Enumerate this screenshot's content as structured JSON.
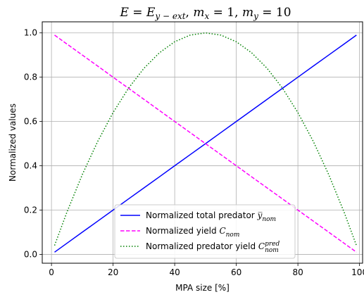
{
  "chart_data": {
    "type": "line",
    "title": {
      "E": "E",
      "equals": " = ",
      "E_sub": "y − ext",
      "sep1": ",   ",
      "mx": "m",
      "mx_sub": "x",
      "mx_val": " = 1,   ",
      "my": "m",
      "my_sub": "y",
      "my_val": " = 10"
    },
    "xlabel": "MPA size [%]",
    "ylabel": "Normalized values",
    "xlim": [
      -3,
      101
    ],
    "ylim": [
      -0.04,
      1.05
    ],
    "xticks": [
      0,
      20,
      40,
      60,
      80,
      100
    ],
    "yticks": [
      0.0,
      0.2,
      0.4,
      0.6,
      0.8,
      1.0
    ],
    "xtick_labels": [
      "0",
      "20",
      "40",
      "60",
      "80",
      "100"
    ],
    "ytick_labels": [
      "0.0",
      "0.2",
      "0.4",
      "0.6",
      "0.8",
      "1.0"
    ],
    "grid": true,
    "legend_position": "lower center",
    "x": [
      1,
      5,
      10,
      15,
      20,
      25,
      30,
      35,
      40,
      45,
      50,
      55,
      60,
      65,
      70,
      75,
      80,
      85,
      90,
      95,
      99
    ],
    "series": [
      {
        "name_prefix": "Normalized total predator ",
        "name_math": "y̅",
        "name_sub": "nom",
        "name_sup": "",
        "color": "#0000ff",
        "style": "solid",
        "values": [
          0.01,
          0.05,
          0.1,
          0.15,
          0.2,
          0.25,
          0.3,
          0.35,
          0.4,
          0.45,
          0.5,
          0.55,
          0.6,
          0.65,
          0.7,
          0.75,
          0.8,
          0.85,
          0.9,
          0.95,
          0.99
        ]
      },
      {
        "name_prefix": "Normalized yield ",
        "name_math": "C",
        "name_sub": "nom",
        "name_sup": "",
        "color": "#ff00ff",
        "style": "dashed",
        "values": [
          0.99,
          0.95,
          0.9,
          0.85,
          0.8,
          0.75,
          0.7,
          0.65,
          0.6,
          0.55,
          0.5,
          0.45,
          0.4,
          0.35,
          0.3,
          0.25,
          0.2,
          0.15,
          0.1,
          0.05,
          0.01
        ]
      },
      {
        "name_prefix": "Normalized predator yield ",
        "name_math": "C",
        "name_sub": "nom",
        "name_sup": "pred",
        "color": "#008000",
        "style": "dotted",
        "values": [
          0.04,
          0.19,
          0.36,
          0.51,
          0.64,
          0.75,
          0.84,
          0.91,
          0.96,
          0.99,
          1.0,
          0.99,
          0.96,
          0.91,
          0.84,
          0.75,
          0.64,
          0.51,
          0.36,
          0.19,
          0.04
        ]
      }
    ]
  }
}
